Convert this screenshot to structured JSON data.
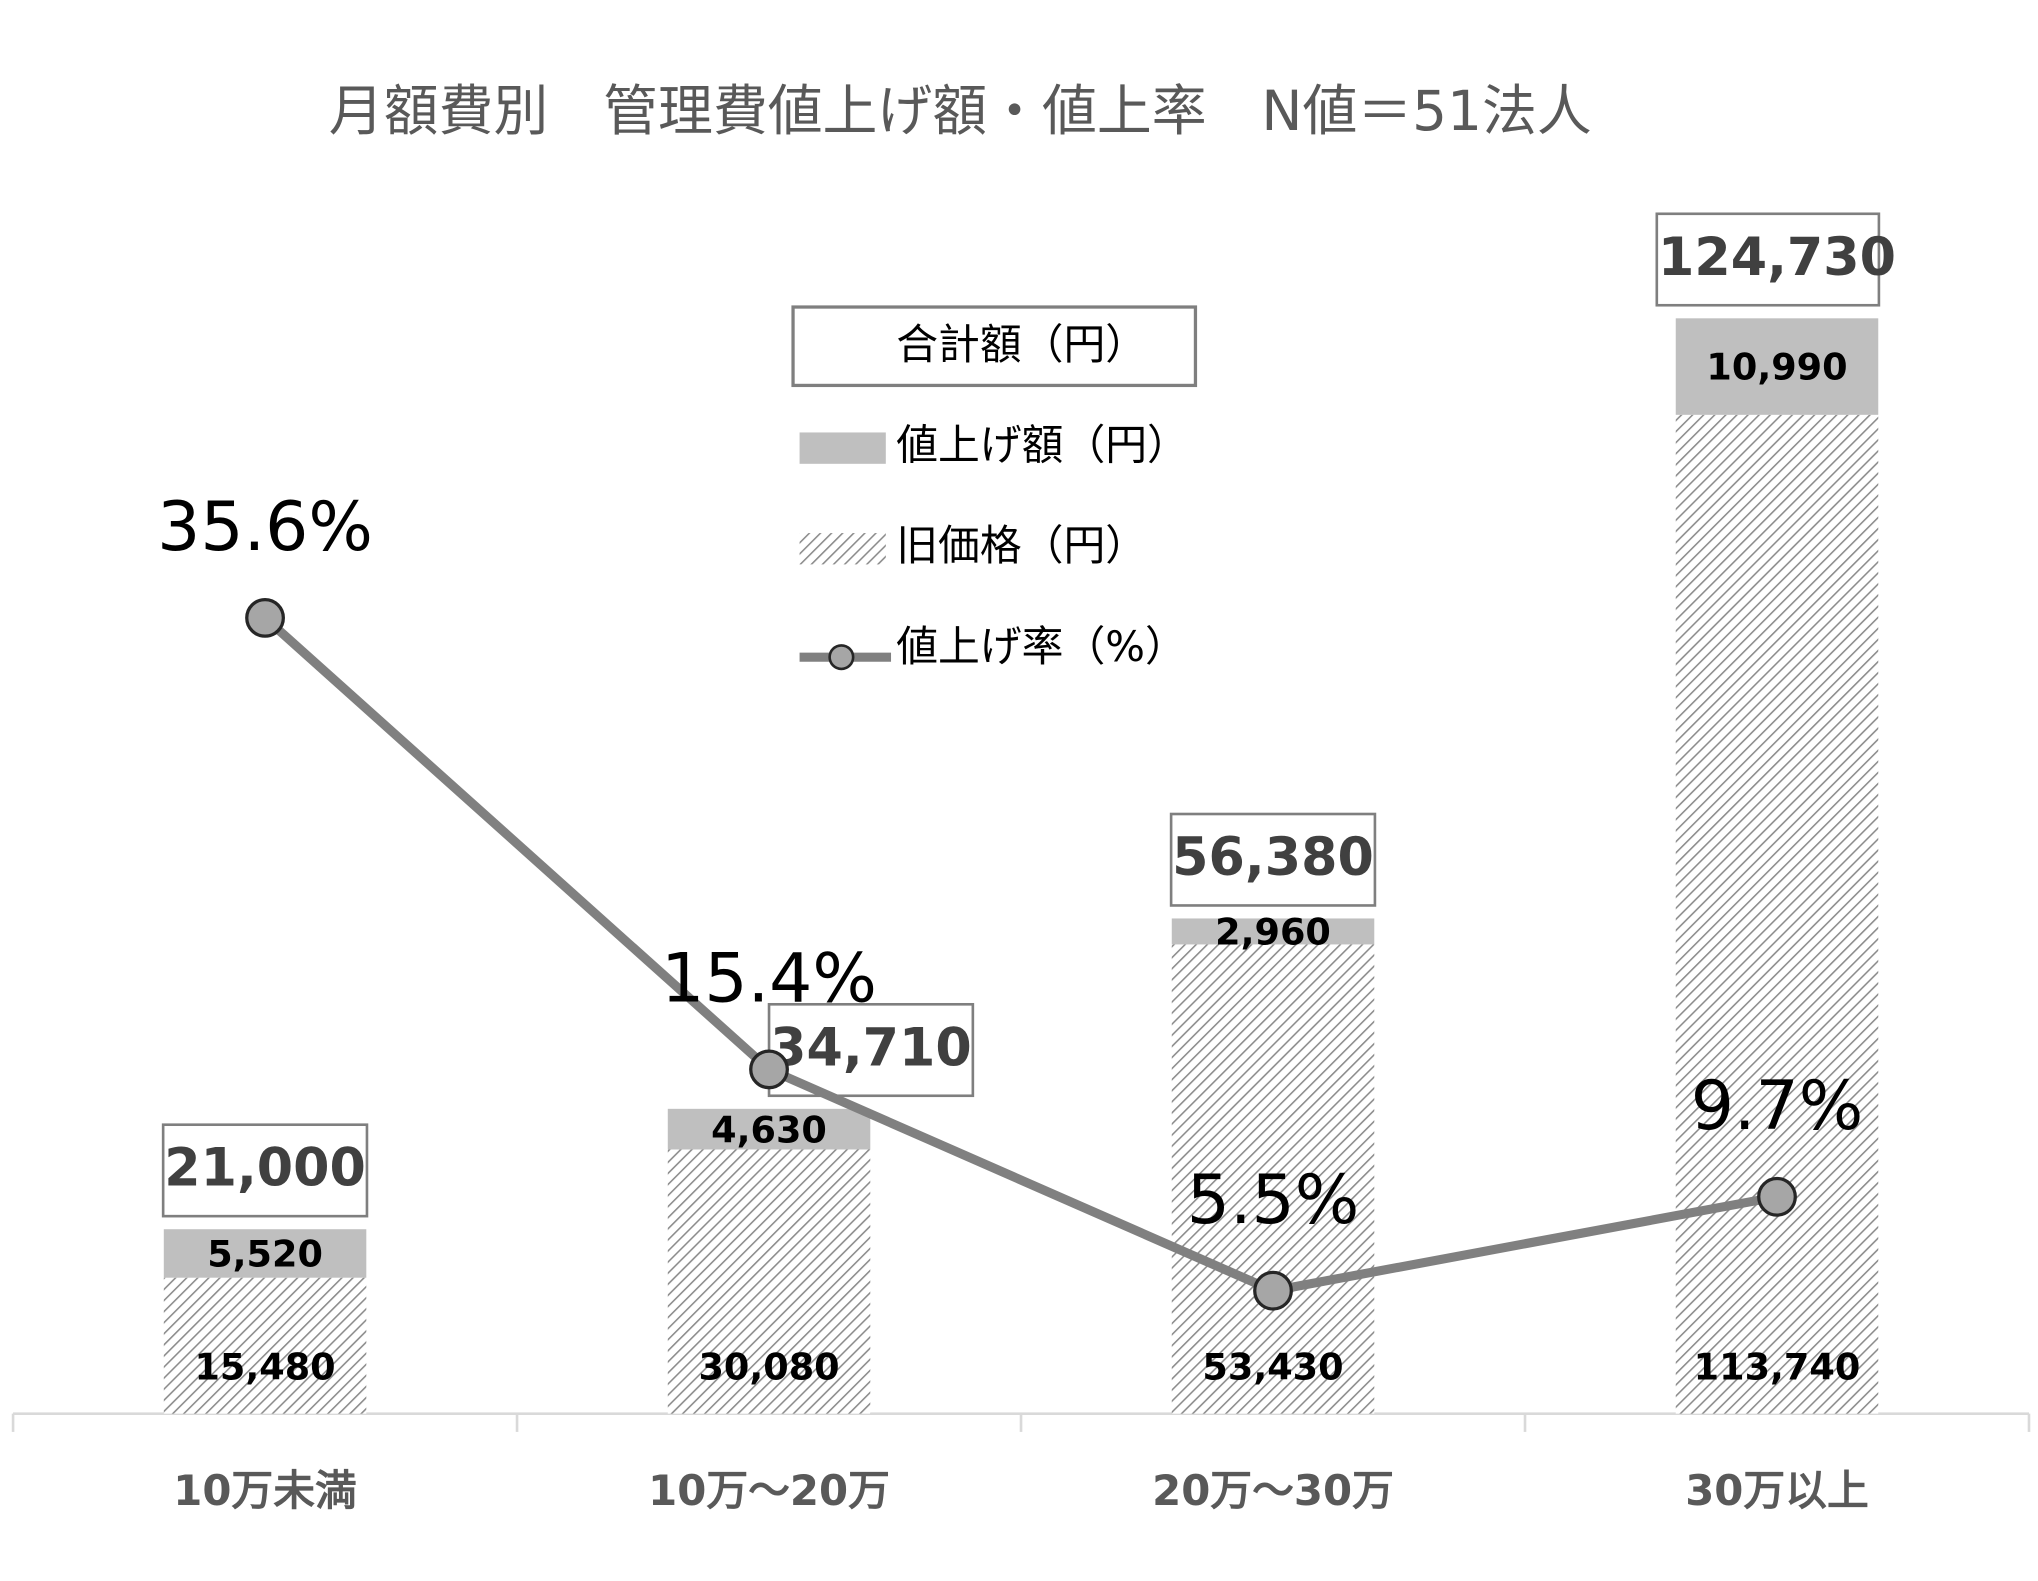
{
  "chart_data": {
    "type": "stacked-bar-line",
    "title": "月額費別　管理費値上げ額・値上率　N値＝51法人",
    "categories": [
      "10万未満",
      "10万～20万",
      "20万～30万",
      "30万以上"
    ],
    "series": [
      {
        "name": "旧価格（円）",
        "color": "#8c8c8c",
        "pattern": "hatch",
        "values": [
          15480,
          30080,
          53430,
          113740
        ],
        "value_labels": [
          "15,480",
          "30,080",
          "53,430",
          "113,740"
        ]
      },
      {
        "name": "値上げ額（円）",
        "color": "#bfbfbf",
        "values": [
          5520,
          4630,
          2960,
          10990
        ],
        "value_labels": [
          "5,520",
          "4,630",
          "2,960",
          "10,990"
        ]
      },
      {
        "name": "合計額（円）",
        "role": "total",
        "values": [
          21000,
          34710,
          56380,
          124730
        ],
        "value_labels": [
          "21,000",
          "34,710",
          "56,380",
          "124,730"
        ]
      },
      {
        "name": "値上げ率（%）",
        "type": "line",
        "axis": "y2",
        "color": "#808080",
        "values": [
          35.6,
          15.4,
          5.5,
          9.7
        ],
        "value_labels": [
          "35.6%",
          "15.4%",
          "5.5%",
          "9.7%"
        ]
      }
    ],
    "ylim": [
      0,
      140000
    ],
    "y2lim": [
      0,
      55
    ],
    "grid": false
  }
}
